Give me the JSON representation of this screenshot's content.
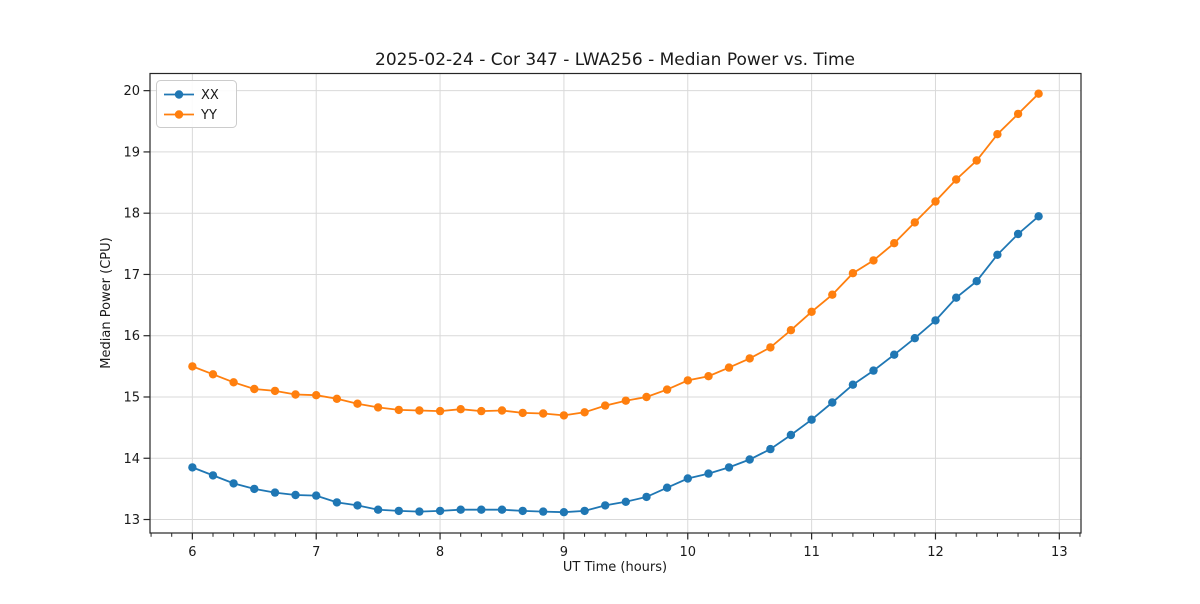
{
  "chart": {
    "title": "2025-02-24 - Cor 347 - LWA256 - Median Power vs. Time",
    "xlabel": "UT Time (hours)",
    "ylabel": "Median Power (CPU)",
    "legend_entries": [
      "XX",
      "YY"
    ],
    "colors": {
      "xx": "#1f77b4",
      "yy": "#ff7f0e",
      "grid": "#d9d9d9",
      "spine": "#262626",
      "legend_border": "#cccccc"
    }
  },
  "chart_data": {
    "type": "line",
    "title": "2025-02-24 - Cor 347 - LWA256 - Median Power vs. Time",
    "xlabel": "UT Time (hours)",
    "ylabel": "Median Power (CPU)",
    "grid": true,
    "legend_position": "upper left",
    "xlim": [
      5.658,
      13.175
    ],
    "ylim": [
      12.78,
      20.28
    ],
    "xticks": [
      6,
      7,
      8,
      9,
      10,
      11,
      12,
      13
    ],
    "yticks": [
      13,
      14,
      15,
      16,
      17,
      18,
      19,
      20
    ],
    "minor_xtick_step": 0.1667,
    "x": [
      6.0,
      6.167,
      6.333,
      6.5,
      6.667,
      6.833,
      7.0,
      7.167,
      7.333,
      7.5,
      7.667,
      7.833,
      8.0,
      8.167,
      8.333,
      8.5,
      8.667,
      8.833,
      9.0,
      9.167,
      9.333,
      9.5,
      9.667,
      9.833,
      10.0,
      10.167,
      10.333,
      10.5,
      10.667,
      10.833,
      11.0,
      11.167,
      11.333,
      11.5,
      11.667,
      11.833,
      12.0,
      12.167,
      12.333,
      12.5,
      12.667,
      12.833
    ],
    "series": [
      {
        "name": "XX",
        "color": "#1f77b4",
        "values": [
          13.85,
          13.72,
          13.59,
          13.5,
          13.44,
          13.4,
          13.39,
          13.28,
          13.23,
          13.16,
          13.14,
          13.13,
          13.14,
          13.16,
          13.16,
          13.16,
          13.14,
          13.13,
          13.12,
          13.14,
          13.23,
          13.29,
          13.37,
          13.52,
          13.67,
          13.75,
          13.85,
          13.98,
          14.15,
          14.38,
          14.63,
          14.91,
          15.2,
          15.43,
          15.69,
          15.96,
          16.25,
          16.62,
          16.89,
          17.32,
          17.66,
          17.95
        ]
      },
      {
        "name": "YY",
        "color": "#ff7f0e",
        "values": [
          15.5,
          15.37,
          15.24,
          15.13,
          15.1,
          15.04,
          15.03,
          14.97,
          14.89,
          14.83,
          14.79,
          14.78,
          14.77,
          14.8,
          14.77,
          14.78,
          14.74,
          14.73,
          14.7,
          14.75,
          14.86,
          14.94,
          15.0,
          15.12,
          15.27,
          15.34,
          15.48,
          15.63,
          15.81,
          16.09,
          16.39,
          16.67,
          17.02,
          17.23,
          17.51,
          17.85,
          18.19,
          18.55,
          18.86,
          19.29,
          19.62,
          19.95
        ]
      }
    ]
  }
}
